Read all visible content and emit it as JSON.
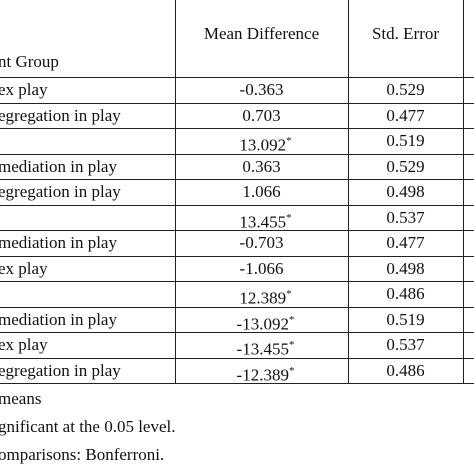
{
  "table": {
    "header": {
      "group": "nt Group",
      "mean_diff": "Mean Difference",
      "std_error": "Std. Error"
    },
    "rows": [
      {
        "group": "ex play",
        "mean_diff": "-0.363",
        "std_error": "0.529"
      },
      {
        "group": "egregation in play",
        "mean_diff": "0.703",
        "std_error": "0.477"
      },
      {
        "mean_diff": "13.092",
        "sig": "*",
        "std_error": "0.519"
      },
      {
        "group": "mediation in play",
        "mean_diff": "0.363",
        "std_error": "0.529"
      },
      {
        "group": "egregation in play",
        "mean_diff": "1.066",
        "std_error": "0.498"
      },
      {
        "mean_diff": "13.455",
        "sig": "*",
        "std_error": "0.537"
      },
      {
        "group": "mediation in play",
        "mean_diff": "-0.703",
        "std_error": "0.477"
      },
      {
        "group": "ex play",
        "mean_diff": "-1.066",
        "std_error": "0.498"
      },
      {
        "mean_diff": "12.389",
        "sig": "*",
        "std_error": "0.486"
      },
      {
        "group": "mediation in play",
        "mean_diff": "-13.092",
        "sig": "*",
        "std_error": "0.519"
      },
      {
        "group": "ex play",
        "mean_diff": "-13.455",
        "sig": "*",
        "std_error": "0.537"
      },
      {
        "group": "egregation in play",
        "mean_diff": "-12.389",
        "sig": "*",
        "std_error": "0.486"
      }
    ],
    "footnotes": [
      "means",
      "gnificant at the 0.05 level.",
      "omparisons: Bonferroni."
    ]
  }
}
